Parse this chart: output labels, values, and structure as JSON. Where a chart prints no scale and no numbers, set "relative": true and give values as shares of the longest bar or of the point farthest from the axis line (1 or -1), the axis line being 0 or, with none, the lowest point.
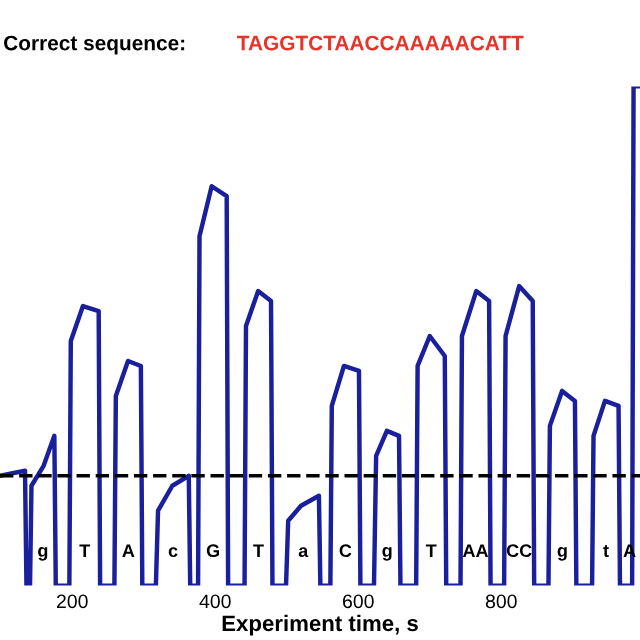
{
  "chart_data": {
    "type": "line",
    "relative": true,
    "title": "Correct sequence:",
    "subtitle": "TAGGTCTAACCAAAAACATT",
    "xlabel": "Experiment time, s",
    "xlim": [
      99,
      994
    ],
    "xticks": [
      200,
      400,
      600,
      800
    ],
    "grid": false,
    "marker": "none",
    "line_style": "solid",
    "series": [
      {
        "color": "#1a1f9c",
        "x": [
          99,
          134,
          136,
          141,
          143,
          160,
          175,
          177,
          189,
          196,
          198,
          215,
          237,
          239,
          259,
          261,
          278,
          296,
          298,
          317,
          320,
          340,
          363,
          365,
          376,
          378,
          395,
          416,
          418,
          441,
          443,
          460,
          478,
          480,
          499,
          502,
          520,
          545,
          547,
          561,
          563,
          580,
          601,
          603,
          622,
          625,
          640,
          657,
          659,
          681,
          683,
          700,
          721,
          723,
          743,
          745,
          765,
          783,
          785,
          804,
          806,
          825,
          844,
          846,
          866,
          868,
          885,
          903,
          905,
          927,
          929,
          945,
          964,
          966,
          983,
          985,
          994
        ],
        "values": [
          0.22,
          0.23,
          0,
          0,
          0.2,
          0.24,
          0.3,
          0,
          0,
          0,
          0.49,
          0.56,
          0.55,
          0,
          0,
          0.38,
          0.45,
          0.44,
          0,
          0,
          0.15,
          0.2,
          0.22,
          0,
          0,
          0.7,
          0.8,
          0.78,
          0,
          0,
          0.52,
          0.59,
          0.57,
          0,
          0,
          0.13,
          0.16,
          0.18,
          0,
          0,
          0.36,
          0.44,
          0.43,
          0,
          0,
          0.26,
          0.31,
          0.3,
          0,
          0,
          0.44,
          0.5,
          0.46,
          0,
          0,
          0.5,
          0.59,
          0.57,
          0,
          0,
          0.5,
          0.6,
          0.57,
          0,
          0,
          0.32,
          0.39,
          0.37,
          0,
          0,
          0.3,
          0.37,
          0.36,
          0,
          0,
          1.0,
          1.0
        ]
      }
    ],
    "ref_lines": [
      {
        "axis": "y",
        "value": 0.22,
        "color": "#000000",
        "line_style": "dashed"
      }
    ],
    "annotations": [
      "g",
      "T",
      "A",
      "c",
      "G",
      "T",
      "a",
      "C",
      "g",
      "T",
      "AA",
      "CC",
      "g",
      "t",
      "A"
    ]
  }
}
